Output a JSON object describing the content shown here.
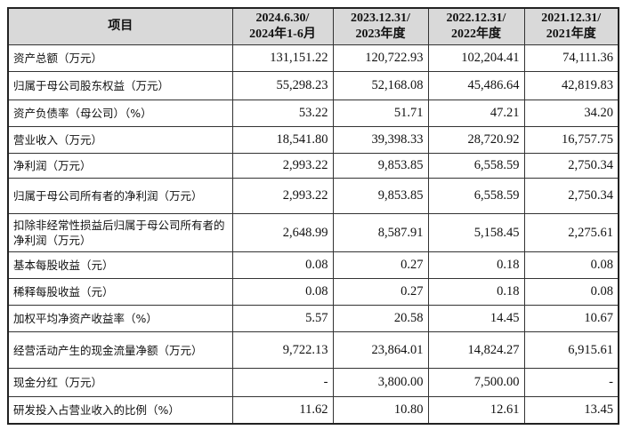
{
  "header": [
    "项目",
    "2024.6.30/\n2024年1-6月",
    "2023.12.31/\n2023年度",
    "2022.12.31/\n2022年度",
    "2021.12.31/\n2021年度"
  ],
  "rows": [
    {
      "label": "资产总额（万元）",
      "values": [
        "131,151.22",
        "120,722.93",
        "102,204.41",
        "74,111.36"
      ]
    },
    {
      "label": "归属于母公司股东权益（万元）",
      "values": [
        "55,298.23",
        "52,168.08",
        "45,486.64",
        "42,819.83"
      ]
    },
    {
      "label": "资产负债率（母公司）（%）",
      "values": [
        "53.22",
        "51.71",
        "47.21",
        "34.20"
      ]
    },
    {
      "label": "营业收入（万元）",
      "values": [
        "18,541.80",
        "39,398.33",
        "28,720.92",
        "16,757.75"
      ]
    },
    {
      "label": "净利润（万元）",
      "values": [
        "2,993.22",
        "9,853.85",
        "6,558.59",
        "2,750.34"
      ]
    },
    {
      "label": "归属于母公司所有者的净利润（万元）",
      "values": [
        "2,993.22",
        "9,853.85",
        "6,558.59",
        "2,750.34"
      ]
    },
    {
      "label": "扣除非经常性损益后归属于母公司所有者的净利润（万元）",
      "values": [
        "2,648.99",
        "8,587.91",
        "5,158.45",
        "2,275.61"
      ]
    },
    {
      "label": "基本每股收益（元）",
      "values": [
        "0.08",
        "0.27",
        "0.18",
        "0.08"
      ]
    },
    {
      "label": "稀释每股收益（元）",
      "values": [
        "0.08",
        "0.27",
        "0.18",
        "0.08"
      ]
    },
    {
      "label": "加权平均净资产收益率（%）",
      "values": [
        "5.57",
        "20.58",
        "14.45",
        "10.67"
      ]
    },
    {
      "label": "经营活动产生的现金流量净额（万元）",
      "values": [
        "9,722.13",
        "23,864.01",
        "14,824.27",
        "6,915.61"
      ]
    },
    {
      "label": "现金分红（万元）",
      "values": [
        "-",
        "3,800.00",
        "7,500.00",
        "-"
      ]
    },
    {
      "label": "研发投入占营业收入的比例（%）",
      "values": [
        "11.62",
        "10.80",
        "12.61",
        "13.45"
      ]
    }
  ]
}
